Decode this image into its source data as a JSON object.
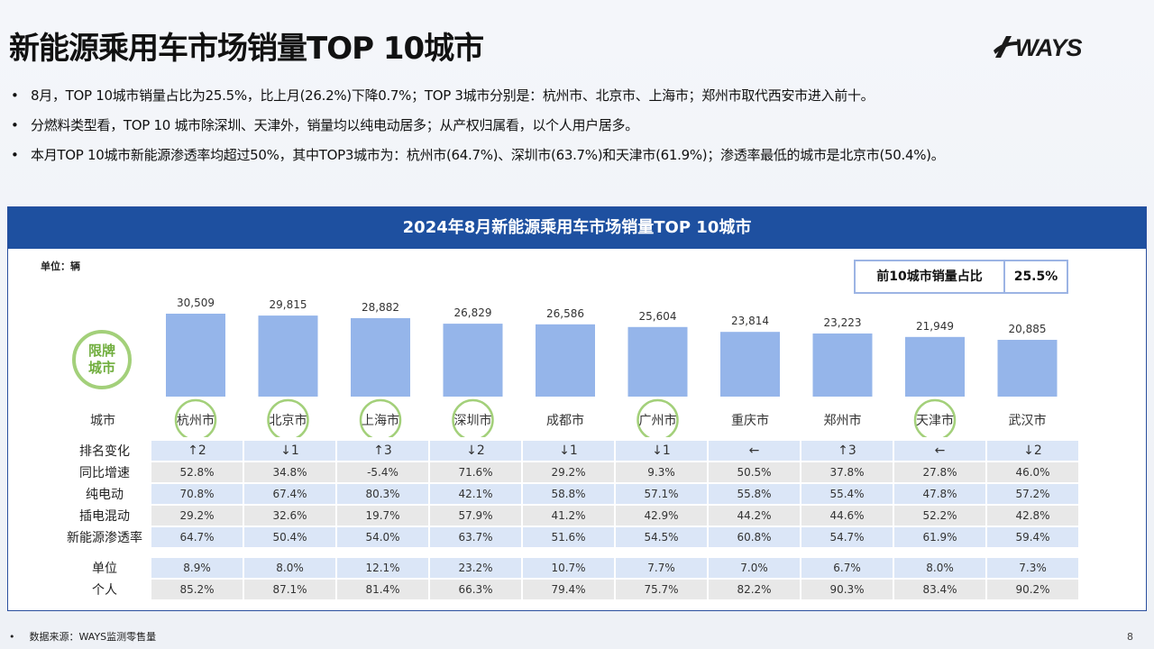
{
  "title": "新能源乘用车市场销量TOP  10城市",
  "logo_text": "WAYS",
  "bullets": [
    "8月，TOP 10城市销量占比为25.5%，比上月(26.2%)下降0.7%；TOP 3城市分别是：杭州市、北京市、上海市；郑州市取代西安市进入前十。",
    "分燃料类型看，TOP 10 城市除深圳、天津外，销量均以纯电动居多；从产权归属看，以个人用户居多。",
    "本月TOP 10城市新能源渗透率均超过50%，其中TOP3城市为：杭州市(64.7%)、深圳市(63.7%)和天津市(61.9%)；渗透率最低的城市是北京市(50.4%)。"
  ],
  "panel": {
    "header": "2024年8月新能源乘用车市场销量TOP  10城市",
    "unit_label": "单位：辆",
    "share_label": "前10城市销量占比",
    "share_value": "25.5%",
    "badge_line1": "限牌",
    "badge_line2": "城市"
  },
  "colors": {
    "bar": "#95b5ea",
    "header": "#1e50a0",
    "badge": "#a3d07a"
  },
  "chart_data": {
    "type": "bar",
    "categories": [
      "杭州市",
      "北京市",
      "上海市",
      "深圳市",
      "成都市",
      "广州市",
      "重庆市",
      "郑州市",
      "天津市",
      "武汉市"
    ],
    "values": [
      30509,
      29815,
      28882,
      26829,
      26586,
      25604,
      23814,
      23223,
      21949,
      20885
    ],
    "value_labels": [
      "30,509",
      "29,815",
      "28,882",
      "26,829",
      "26,586",
      "25,604",
      "23,814",
      "23,223",
      "21,949",
      "20,885"
    ],
    "restricted_license": [
      true,
      true,
      true,
      true,
      false,
      true,
      false,
      false,
      true,
      false
    ],
    "xlabel": "城市",
    "ylim": [
      0,
      30509
    ]
  },
  "table": {
    "rows": [
      {
        "label": "排名变化",
        "style": "blue rank",
        "values": [
          "↑2",
          "↓1",
          "↑3",
          "↓2",
          "↓1",
          "↓1",
          "←",
          "↑3",
          "←",
          "↓2"
        ]
      },
      {
        "label": "同比增速",
        "style": "grey rb",
        "values": [
          "52.8%",
          "34.8%",
          "-5.4%",
          "71.6%",
          "29.2%",
          "9.3%",
          "50.5%",
          "37.8%",
          "27.8%",
          "46.0%"
        ]
      },
      {
        "label": "纯电动",
        "style": "blue rb",
        "values": [
          "70.8%",
          "67.4%",
          "80.3%",
          "42.1%",
          "58.8%",
          "57.1%",
          "55.8%",
          "55.4%",
          "47.8%",
          "57.2%"
        ]
      },
      {
        "label": "插电混动",
        "style": "grey rb",
        "values": [
          "29.2%",
          "32.6%",
          "19.7%",
          "57.9%",
          "41.2%",
          "42.9%",
          "44.2%",
          "44.6%",
          "52.2%",
          "42.8%"
        ]
      },
      {
        "label": "新能源渗透率",
        "style": "blue rb",
        "values": [
          "64.7%",
          "50.4%",
          "54.0%",
          "63.7%",
          "51.6%",
          "54.5%",
          "60.8%",
          "54.7%",
          "61.9%",
          "59.4%"
        ]
      },
      {
        "label": "",
        "style": "spacer",
        "values": []
      },
      {
        "label": "单位",
        "style": "blue",
        "values": [
          "8.9%",
          "8.0%",
          "12.1%",
          "23.2%",
          "10.7%",
          "7.7%",
          "7.0%",
          "6.7%",
          "8.0%",
          "7.3%"
        ]
      },
      {
        "label": "个人",
        "style": "grey rb",
        "values": [
          "85.2%",
          "87.1%",
          "81.4%",
          "66.3%",
          "79.4%",
          "75.7%",
          "82.2%",
          "90.3%",
          "83.4%",
          "90.2%"
        ]
      }
    ]
  },
  "footer": "数据来源：WAYS监测零售量",
  "page_number": "8"
}
